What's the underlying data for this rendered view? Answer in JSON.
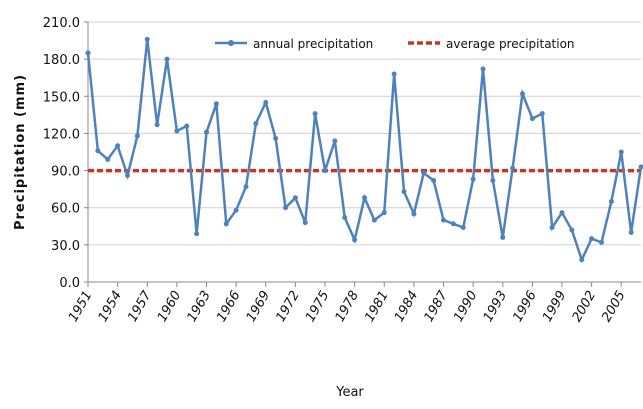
{
  "chart_data": {
    "type": "line",
    "x_label": "Year",
    "y_label": "Precipitation (mm)",
    "x": [
      1951,
      1952,
      1953,
      1954,
      1955,
      1956,
      1957,
      1958,
      1959,
      1960,
      1961,
      1962,
      1963,
      1964,
      1965,
      1966,
      1967,
      1968,
      1969,
      1970,
      1971,
      1972,
      1973,
      1974,
      1975,
      1976,
      1977,
      1978,
      1979,
      1980,
      1981,
      1982,
      1983,
      1984,
      1985,
      1986,
      1987,
      1988,
      1989,
      1990,
      1991,
      1992,
      1993,
      1994,
      1995,
      1996,
      1997,
      1998,
      1999,
      2000,
      2001,
      2002,
      2003,
      2004,
      2005,
      2006,
      2007
    ],
    "series": [
      {
        "name": "annual precipitation",
        "color": "#4f81bd",
        "values": [
          185,
          106,
          99,
          110,
          86,
          118,
          196,
          127,
          180,
          122,
          126,
          39,
          121,
          144,
          47,
          58,
          77,
          128,
          145,
          116,
          60,
          68,
          48,
          136,
          90,
          114,
          52,
          34,
          68,
          50,
          56,
          168,
          73,
          55,
          88,
          82,
          50,
          47,
          44,
          83,
          172,
          82,
          36,
          92,
          152,
          132,
          136,
          44,
          56,
          42,
          18,
          35,
          32,
          65,
          105,
          40,
          93
        ]
      }
    ],
    "reference_lines": [
      {
        "name": "average precipitation",
        "color": "#c0392b",
        "value": 90
      }
    ],
    "xlim": [
      1951,
      2007
    ],
    "xticks": [
      1951,
      1954,
      1957,
      1960,
      1963,
      1966,
      1969,
      1972,
      1975,
      1978,
      1981,
      1984,
      1987,
      1990,
      1993,
      1996,
      1999,
      2002,
      2005
    ],
    "ylim": [
      0,
      210
    ],
    "yticks": [
      {
        "value": 0,
        "label": "0.0"
      },
      {
        "value": 30,
        "label": "30.0"
      },
      {
        "value": 60,
        "label": "60.0"
      },
      {
        "value": 90,
        "label": "90.0"
      },
      {
        "value": 120,
        "label": "120.0"
      },
      {
        "value": 150,
        "label": "150.0"
      },
      {
        "value": 180,
        "label": "180.0"
      },
      {
        "value": 210,
        "label": "210.0"
      }
    ],
    "grid": true
  }
}
